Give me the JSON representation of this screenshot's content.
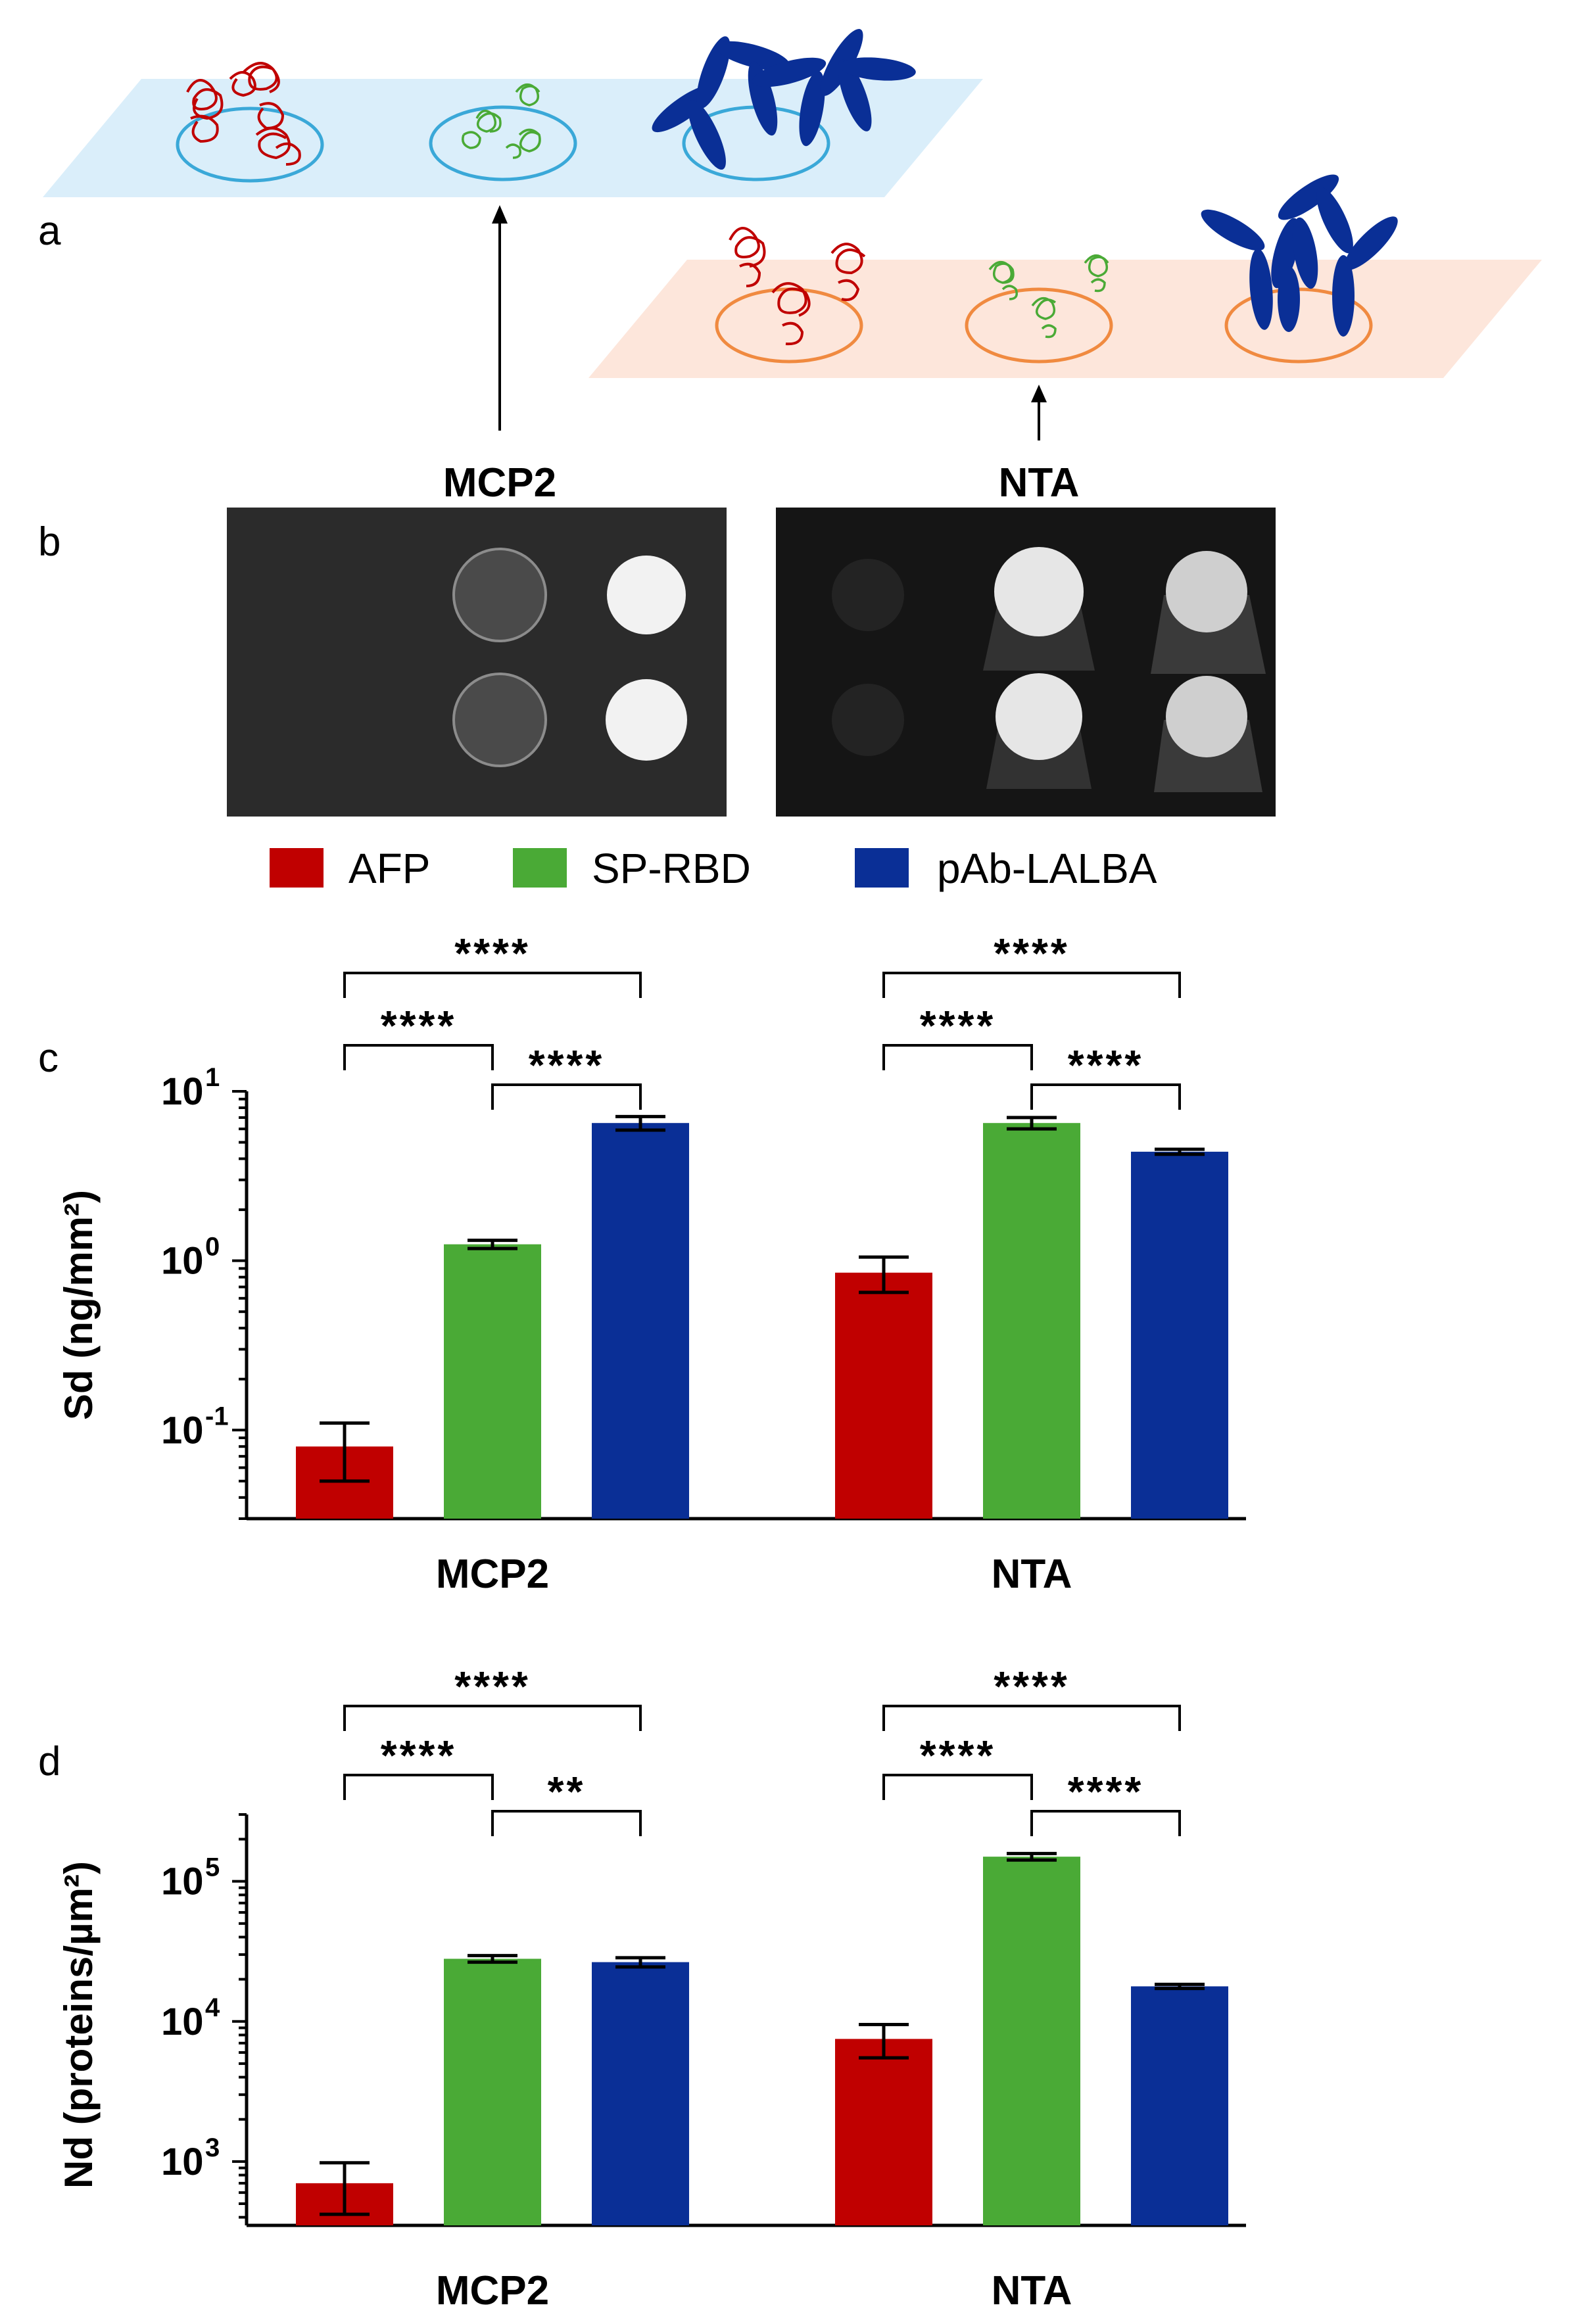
{
  "panels": {
    "a": "a",
    "b": "b",
    "c": "c",
    "d": "d"
  },
  "panel_b": {
    "left_title": "MCP2",
    "right_title": "NTA"
  },
  "legend": [
    {
      "label": "AFP",
      "color": "#c00000"
    },
    {
      "label": "SP-RBD",
      "color": "#4aaa36"
    },
    {
      "label": "pAb-LALBA",
      "color": "#0a2f96"
    }
  ],
  "colors": {
    "afp": "#c00000",
    "sp_rbd": "#4aaa36",
    "pab_lalba": "#0a2f96",
    "mcp2_surface": "#daeefa",
    "nta_surface": "#fde6db",
    "mcp2_spot_ring": "#3aa8d8",
    "nta_spot_ring": "#f08a40"
  },
  "icons": {
    "afp_protein": "red-protein-ribbon-icon",
    "sp_rbd_protein": "green-protein-ribbon-icon",
    "antibody": "y-shaped-antibody-icon"
  },
  "chart_data": [
    {
      "id": "c",
      "type": "bar",
      "scale": "log",
      "ylabel": "Sd (ng/mm²)",
      "ylim": [
        0.03,
        10
      ],
      "yticks": [
        {
          "value": 0.1,
          "label": "10",
          "exp": "-1"
        },
        {
          "value": 1,
          "label": "10",
          "exp": "0"
        },
        {
          "value": 10,
          "label": "10",
          "exp": "1"
        }
      ],
      "categories": [
        "MCP2",
        "NTA"
      ],
      "series": [
        {
          "name": "AFP",
          "values": [
            0.08,
            0.85
          ],
          "errors": [
            0.03,
            0.2
          ]
        },
        {
          "name": "SP-RBD",
          "values": [
            1.25,
            6.5
          ],
          "errors": [
            0.07,
            0.5
          ]
        },
        {
          "name": "pAb-LALBA",
          "values": [
            6.5,
            4.4
          ],
          "errors": [
            0.6,
            0.15
          ]
        }
      ],
      "significance": [
        {
          "group": "MCP2",
          "from": "AFP",
          "to": "pAb-LALBA",
          "label": "****"
        },
        {
          "group": "MCP2",
          "from": "AFP",
          "to": "SP-RBD",
          "label": "****"
        },
        {
          "group": "MCP2",
          "from": "SP-RBD",
          "to": "pAb-LALBA",
          "label": "****"
        },
        {
          "group": "NTA",
          "from": "AFP",
          "to": "pAb-LALBA",
          "label": "****"
        },
        {
          "group": "NTA",
          "from": "AFP",
          "to": "SP-RBD",
          "label": "****"
        },
        {
          "group": "NTA",
          "from": "SP-RBD",
          "to": "pAb-LALBA",
          "label": "****"
        }
      ]
    },
    {
      "id": "d",
      "type": "bar",
      "scale": "log",
      "ylabel": "Nd (proteins/µm²)",
      "ylim": [
        350,
        300000
      ],
      "yticks": [
        {
          "value": 1000,
          "label": "10",
          "exp": "3"
        },
        {
          "value": 10000,
          "label": "10",
          "exp": "4"
        },
        {
          "value": 100000,
          "label": "10",
          "exp": "5"
        }
      ],
      "categories": [
        "MCP2",
        "NTA"
      ],
      "series": [
        {
          "name": "AFP",
          "values": [
            700,
            7500
          ],
          "errors": [
            280,
            2000
          ]
        },
        {
          "name": "SP-RBD",
          "values": [
            28000,
            150000
          ],
          "errors": [
            1500,
            8000
          ]
        },
        {
          "name": "pAb-LALBA",
          "values": [
            26500,
            17800
          ],
          "errors": [
            2000,
            600
          ]
        }
      ],
      "significance": [
        {
          "group": "MCP2",
          "from": "AFP",
          "to": "pAb-LALBA",
          "label": "****"
        },
        {
          "group": "MCP2",
          "from": "AFP",
          "to": "SP-RBD",
          "label": "****"
        },
        {
          "group": "MCP2",
          "from": "SP-RBD",
          "to": "pAb-LALBA",
          "label": "**"
        },
        {
          "group": "NTA",
          "from": "AFP",
          "to": "pAb-LALBA",
          "label": "****"
        },
        {
          "group": "NTA",
          "from": "AFP",
          "to": "SP-RBD",
          "label": "****"
        },
        {
          "group": "NTA",
          "from": "SP-RBD",
          "to": "pAb-LALBA",
          "label": "****"
        }
      ]
    }
  ]
}
